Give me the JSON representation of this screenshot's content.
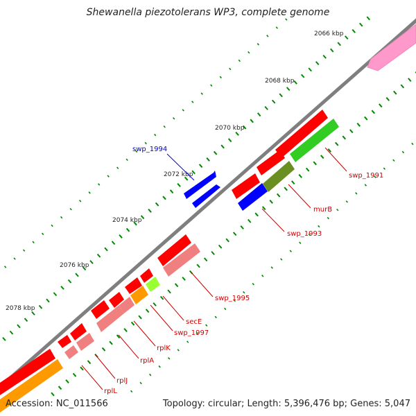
{
  "title": "Shewanella piezotolerans WP3, complete genome",
  "footer": {
    "accession": "Accession: NC_011566",
    "summary": "Topology: circular; Length: 5,396,476 bp; Genes: 5,047"
  },
  "axis": {
    "tick_labels": [
      "2066 kbp",
      "2068 kbp",
      "2070 kbp",
      "2072 kbp",
      "2074 kbp",
      "2076 kbp",
      "2078 kbp"
    ]
  },
  "colors": {
    "backbone": "#7f7f7f",
    "tick": "#008800",
    "cds_red": "#ff0000",
    "cds_pink": "#f08080",
    "cds_green": "#33cc22",
    "cds_olive": "#6b8e23",
    "cds_blue": "#0000ff",
    "cds_orange": "#ff9900",
    "cds_lime": "#99ff33",
    "cds_lightpink": "#ff99cc",
    "label_red": "#cc0000",
    "label_blue": "#0000cc"
  },
  "gene_labels": [
    {
      "name": "swp_1994",
      "color": "blue"
    },
    {
      "name": "swp_1991",
      "color": "red"
    },
    {
      "name": "murB",
      "color": "red"
    },
    {
      "name": "swp_1993",
      "color": "red"
    },
    {
      "name": "swp_1995",
      "color": "red"
    },
    {
      "name": "secE",
      "color": "red"
    },
    {
      "name": "swp_1997",
      "color": "red"
    },
    {
      "name": "rplK",
      "color": "red"
    },
    {
      "name": "rplA",
      "color": "red"
    },
    {
      "name": "rplJ",
      "color": "red"
    },
    {
      "name": "rplL",
      "color": "red"
    }
  ]
}
